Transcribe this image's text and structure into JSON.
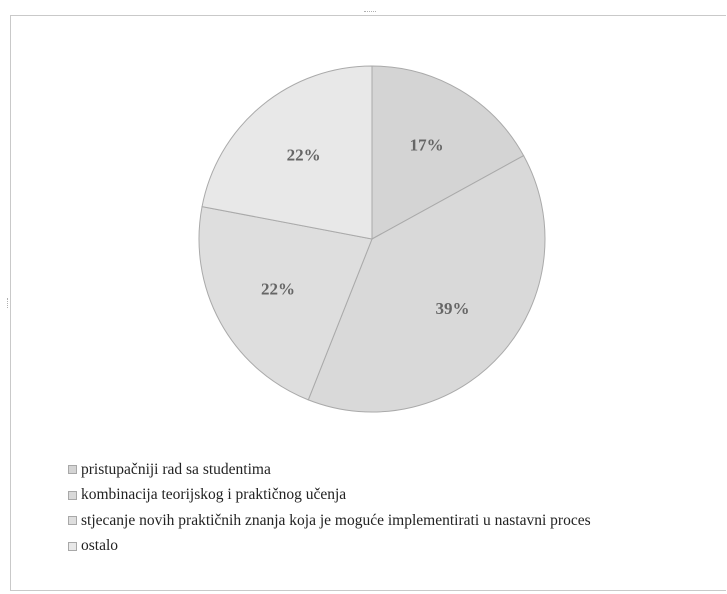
{
  "chart_data": {
    "type": "pie",
    "title": "",
    "categories": [
      "pristupačniji rad sa studentima",
      "kombinacija teorijskog i praktičnog učenja",
      "stjecanje novih praktičnih znanja koja je moguće implementirati u nastavni proces",
      "ostalo"
    ],
    "values": [
      17,
      39,
      22,
      22
    ],
    "value_labels": [
      "17%",
      "39%",
      "22%",
      "22%"
    ],
    "colors": [
      "#d4d4d4",
      "#d9d9d9",
      "#dedede",
      "#e8e8e8"
    ],
    "slice_stroke": "#aaaaaa",
    "label_color": "#666666",
    "legend_position": "bottom-left"
  }
}
